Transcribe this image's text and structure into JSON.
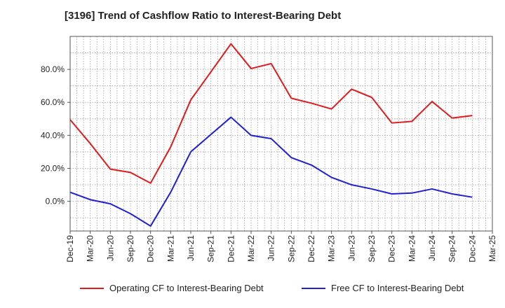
{
  "title": "[3196]  Trend of Cashflow Ratio to Interest-Bearing Debt",
  "chart_data": {
    "type": "line",
    "title": "[3196]  Trend of Cashflow Ratio to Interest-Bearing Debt",
    "xlabel": "",
    "ylabel": "",
    "x": [
      "Dec-19",
      "Mar-20",
      "Jun-20",
      "Sep-20",
      "Dec-20",
      "Mar-21",
      "Jun-21",
      "Sep-21",
      "Dec-21",
      "Mar-22",
      "Jun-22",
      "Sep-22",
      "Dec-22",
      "Mar-23",
      "Jun-23",
      "Sep-23",
      "Dec-23",
      "Mar-24",
      "Jun-24",
      "Sep-24",
      "Dec-24"
    ],
    "x_ticks": [
      "Dec-19",
      "Mar-20",
      "Jun-20",
      "Sep-20",
      "Dec-20",
      "Mar-21",
      "Jun-21",
      "Sep-21",
      "Dec-21",
      "Mar-22",
      "Jun-22",
      "Sep-22",
      "Dec-22",
      "Mar-23",
      "Jun-23",
      "Sep-23",
      "Dec-23",
      "Mar-24",
      "Jun-24",
      "Sep-24",
      "Dec-24",
      "Mar-25"
    ],
    "y_ticks": [
      "0.0%",
      "20.0%",
      "40.0%",
      "60.0%",
      "80.0%"
    ],
    "ylim": [
      -18,
      100
    ],
    "grid": true,
    "legend_position": "bottom",
    "series": [
      {
        "name": "Operating CF to Interest-Bearing Debt",
        "color": "#e31a1c",
        "values": [
          49.5,
          35.0,
          19.5,
          17.5,
          11.0,
          33.0,
          61.5,
          78.5,
          95.5,
          80.5,
          83.5,
          62.5,
          59.5,
          56.0,
          68.0,
          63.0,
          47.5,
          48.5,
          60.5,
          50.5,
          52.0
        ]
      },
      {
        "name": "Free CF to Interest-Bearing Debt",
        "color": "#1f1fd6",
        "values": [
          5.5,
          1.0,
          -1.5,
          -7.5,
          -15.0,
          5.5,
          30.0,
          40.5,
          51.0,
          40.0,
          38.0,
          26.5,
          22.0,
          14.5,
          10.0,
          7.5,
          4.5,
          5.0,
          7.5,
          4.5,
          2.5
        ]
      }
    ]
  }
}
